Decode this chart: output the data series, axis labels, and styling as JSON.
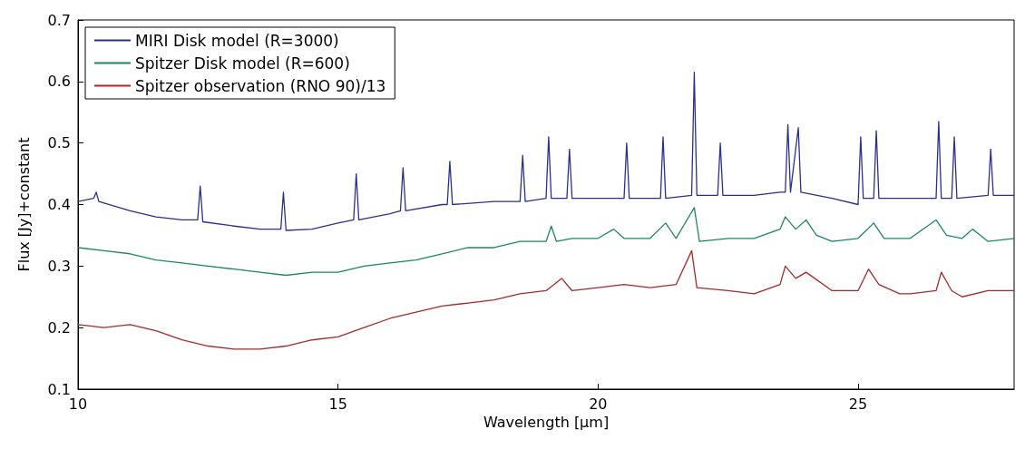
{
  "chart_data": {
    "type": "line",
    "xlabel": "Wavelength [μm]",
    "ylabel": "Flux [Jy]+constant",
    "xlim": [
      10,
      28
    ],
    "xticks": [
      10,
      15,
      20,
      25
    ],
    "ylim": [
      0.1,
      0.7
    ],
    "yticks": [
      0.1,
      0.2,
      0.3,
      0.4,
      0.5,
      0.6,
      0.7
    ],
    "grid": false,
    "legend": "top left",
    "marker": "none",
    "line_style": "solid",
    "series": [
      {
        "name": "MIRI Disk model (R=3000)",
        "color": "#2b2f8f",
        "x": [
          10,
          10.3,
          10.35,
          10.4,
          11,
          11.5,
          12,
          12.3,
          12.35,
          12.4,
          13,
          13.5,
          13.9,
          13.95,
          14,
          14.5,
          15,
          15.3,
          15.35,
          15.4,
          16,
          16.2,
          16.25,
          16.3,
          17,
          17.1,
          17.15,
          17.2,
          18,
          18.5,
          18.55,
          18.6,
          19,
          19.05,
          19.1,
          19.4,
          19.45,
          19.5,
          20,
          20.5,
          20.55,
          20.6,
          21.2,
          21.25,
          21.3,
          21.8,
          21.85,
          21.9,
          22.3,
          22.35,
          22.4,
          23,
          23.5,
          23.6,
          23.65,
          23.7,
          23.85,
          23.9,
          24.5,
          25,
          25.05,
          25.1,
          25.3,
          25.35,
          25.4,
          26,
          26.5,
          26.55,
          26.6,
          26.8,
          26.85,
          26.9,
          27.5,
          27.55,
          27.6,
          28
        ],
        "values": [
          0.405,
          0.41,
          0.42,
          0.405,
          0.39,
          0.38,
          0.375,
          0.375,
          0.43,
          0.372,
          0.365,
          0.36,
          0.36,
          0.42,
          0.358,
          0.36,
          0.37,
          0.375,
          0.45,
          0.375,
          0.385,
          0.39,
          0.46,
          0.39,
          0.4,
          0.4,
          0.47,
          0.4,
          0.405,
          0.405,
          0.48,
          0.405,
          0.41,
          0.51,
          0.41,
          0.41,
          0.49,
          0.41,
          0.41,
          0.41,
          0.5,
          0.41,
          0.41,
          0.51,
          0.41,
          0.415,
          0.615,
          0.415,
          0.415,
          0.5,
          0.415,
          0.415,
          0.42,
          0.42,
          0.53,
          0.42,
          0.525,
          0.42,
          0.41,
          0.4,
          0.51,
          0.41,
          0.41,
          0.52,
          0.41,
          0.41,
          0.41,
          0.535,
          0.41,
          0.41,
          0.51,
          0.41,
          0.415,
          0.49,
          0.415,
          0.415
        ]
      },
      {
        "name": "Spitzer Disk model (R=600)",
        "color": "#1a8a5a",
        "x": [
          10,
          10.5,
          11,
          11.5,
          12,
          12.5,
          13,
          13.5,
          14,
          14.5,
          15,
          15.5,
          16,
          16.5,
          17,
          17.5,
          18,
          18.5,
          19,
          19.1,
          19.2,
          19.5,
          20,
          20.3,
          20.5,
          21,
          21.3,
          21.5,
          21.85,
          21.95,
          22.5,
          23,
          23.5,
          23.6,
          23.8,
          24,
          24.2,
          24.5,
          25,
          25.3,
          25.5,
          26,
          26.5,
          26.7,
          27,
          27.2,
          27.5,
          28
        ],
        "values": [
          0.33,
          0.325,
          0.32,
          0.31,
          0.305,
          0.3,
          0.295,
          0.29,
          0.285,
          0.29,
          0.29,
          0.3,
          0.305,
          0.31,
          0.32,
          0.33,
          0.33,
          0.34,
          0.34,
          0.365,
          0.34,
          0.345,
          0.345,
          0.36,
          0.345,
          0.345,
          0.37,
          0.345,
          0.395,
          0.34,
          0.345,
          0.345,
          0.36,
          0.38,
          0.36,
          0.375,
          0.35,
          0.34,
          0.345,
          0.37,
          0.345,
          0.345,
          0.375,
          0.35,
          0.345,
          0.36,
          0.34,
          0.345
        ]
      },
      {
        "name": "Spitzer observation (RNO 90)/13",
        "color": "#a52a2a",
        "x": [
          10,
          10.5,
          11,
          11.5,
          12,
          12.5,
          13,
          13.5,
          14,
          14.5,
          15,
          15.5,
          16,
          16.5,
          17,
          17.5,
          18,
          18.5,
          19,
          19.3,
          19.5,
          20,
          20.5,
          21,
          21.5,
          21.8,
          21.9,
          22.5,
          23,
          23.5,
          23.6,
          23.8,
          24,
          24.5,
          25,
          25.2,
          25.4,
          25.8,
          26,
          26.5,
          26.6,
          26.8,
          27,
          27.5,
          28
        ],
        "values": [
          0.205,
          0.2,
          0.205,
          0.195,
          0.18,
          0.17,
          0.165,
          0.165,
          0.17,
          0.18,
          0.185,
          0.2,
          0.215,
          0.225,
          0.235,
          0.24,
          0.245,
          0.255,
          0.26,
          0.28,
          0.26,
          0.265,
          0.27,
          0.265,
          0.27,
          0.325,
          0.265,
          0.26,
          0.255,
          0.27,
          0.3,
          0.28,
          0.29,
          0.26,
          0.26,
          0.295,
          0.27,
          0.255,
          0.255,
          0.26,
          0.29,
          0.26,
          0.25,
          0.26,
          0.26
        ]
      }
    ]
  }
}
